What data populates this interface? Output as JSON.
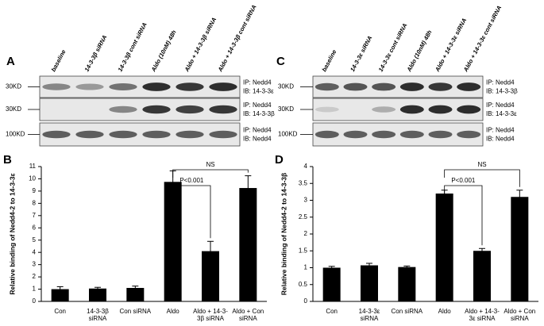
{
  "blots": [
    {
      "letter": "A",
      "lanes": [
        "baseline",
        "14-3-3β siRNA",
        "14-3-3β cont siRNA",
        "Aldo (10nM) 48h",
        "Aldo + 14-3-3β siRNA",
        "Aldo + 14-3-3β cont siRNA"
      ],
      "rows": [
        {
          "size": "30KD",
          "ip": "IP: Nedd4",
          "ib": "IB: 14-3-3ε"
        },
        {
          "size": "30KD",
          "ip": "IP: Nedd4",
          "ib": "IB: 14-3-3β"
        },
        {
          "size": "100KD",
          "ip": "IP: Nedd4",
          "ib": "IB: Nedd4"
        }
      ]
    },
    {
      "letter": "C",
      "lanes": [
        "baseline",
        "14-3-3ε siRNA",
        "14-3-3ε cont siRNA",
        "Aldo (10nM) 48h",
        "Aldo + 14-3-3ε siRNA",
        "Aldo + 14-3-3ε cont siRNA"
      ],
      "rows": [
        {
          "size": "30KD",
          "ip": "IP: Nedd4",
          "ib": "IB: 14-3-3β"
        },
        {
          "size": "30KD",
          "ip": "IP: Nedd4",
          "ib": "IB: 14-3-3ε"
        },
        {
          "size": "100KD",
          "ip": "IP: Nedd4",
          "ib": "IB: Nedd4"
        }
      ]
    }
  ],
  "chart_data": [
    {
      "type": "bar",
      "letter": "B",
      "y_label": "Relative binding of Nedd4-2 to 14-3-3ε",
      "categories": [
        "Con",
        "14-3-3β siRNA",
        "Con siRNA",
        "Aldo",
        "Aldo + 14-3-3β siRNA",
        "Aldo + Con siRNA"
      ],
      "values": [
        1.0,
        1.05,
        1.1,
        9.75,
        4.1,
        9.25
      ],
      "errors": [
        0.2,
        0.1,
        0.15,
        0.9,
        0.8,
        1.0
      ],
      "color": "#000000",
      "ylim": [
        0,
        11
      ],
      "yticks": [
        0,
        1,
        2,
        3,
        4,
        5,
        6,
        7,
        8,
        9,
        10,
        11
      ],
      "annotations": [
        "P<0.001",
        "NS"
      ]
    },
    {
      "type": "bar",
      "letter": "D",
      "y_label": "Relative binding of Nedd4-2 to 14-3-3β",
      "categories": [
        "Con",
        "14-3-3ε siRNA",
        "Con siRNA",
        "Aldo",
        "Aldo + 14-3-3ε siRNA",
        "Aldo + Con siRNA"
      ],
      "values": [
        1.0,
        1.07,
        1.02,
        3.2,
        1.5,
        3.1
      ],
      "errors": [
        0.04,
        0.06,
        0.03,
        0.1,
        0.07,
        0.2
      ],
      "color": "#000000",
      "ylim": [
        0,
        4
      ],
      "yticks": [
        0,
        0.5,
        1,
        1.5,
        2,
        2.5,
        3,
        3.5,
        4
      ],
      "annotations": [
        "P<0.001",
        "NS"
      ]
    }
  ]
}
